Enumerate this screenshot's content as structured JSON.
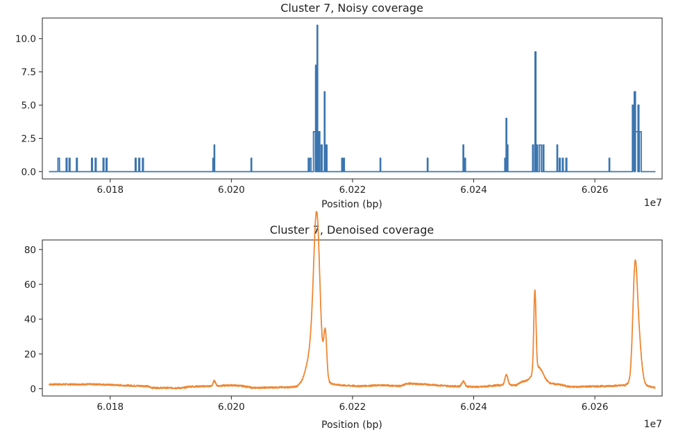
{
  "chart_data": [
    {
      "type": "line",
      "title": "Cluster 7, Noisy coverage",
      "xlabel": "Position (bp)",
      "ylabel": "",
      "x_offset_label": "1e7",
      "xlim": [
        60168800,
        60271100
      ],
      "ylim": [
        -0.55,
        11.55
      ],
      "xticks": [
        60180000,
        60200000,
        60220000,
        60240000,
        60260000
      ],
      "xtick_labels": [
        "6.018",
        "6.020",
        "6.022",
        "6.024",
        "6.026"
      ],
      "yticks": [
        0,
        2.5,
        5,
        7.5,
        10
      ],
      "ytick_labels": [
        "0.0",
        "2.5",
        "5.0",
        "7.5",
        "10.0"
      ],
      "grid": false,
      "color": "#3b75af",
      "series": [
        {
          "baseline": 0,
          "x_range": [
            60169900,
            60270000
          ],
          "spikes": [
            [
              60171500,
              1,
              250
            ],
            [
              60172800,
              1,
              150
            ],
            [
              60173300,
              1,
              150
            ],
            [
              60174500,
              1,
              150
            ],
            [
              60177000,
              1,
              150
            ],
            [
              60177600,
              1,
              150
            ],
            [
              60178900,
              1,
              150
            ],
            [
              60179400,
              1,
              150
            ],
            [
              60184200,
              1,
              150
            ],
            [
              60184800,
              1,
              150
            ],
            [
              60185400,
              1,
              150
            ],
            [
              60197000,
              1,
              100
            ],
            [
              60197200,
              2,
              100
            ],
            [
              60203300,
              1,
              100
            ],
            [
              60212800,
              1,
              200
            ],
            [
              60213000,
              1,
              300
            ],
            [
              60213700,
              3,
              300
            ],
            [
              60214000,
              8,
              200
            ],
            [
              60214200,
              11,
              100
            ],
            [
              60214500,
              3,
              200
            ],
            [
              60214900,
              2,
              150
            ],
            [
              60215400,
              6,
              100
            ],
            [
              60215700,
              2,
              150
            ],
            [
              60218300,
              1,
              150
            ],
            [
              60218600,
              1,
              100
            ],
            [
              60224600,
              1,
              100
            ],
            [
              60232400,
              1,
              100
            ],
            [
              60238300,
              2,
              100
            ],
            [
              60238600,
              1,
              100
            ],
            [
              60245200,
              1,
              150
            ],
            [
              60245400,
              4,
              100
            ],
            [
              60245600,
              2,
              100
            ],
            [
              60249800,
              2,
              150
            ],
            [
              60250200,
              9,
              150
            ],
            [
              60250500,
              2,
              100
            ],
            [
              60251000,
              2,
              300
            ],
            [
              60251500,
              2,
              150
            ],
            [
              60253800,
              2,
              100
            ],
            [
              60254200,
              1,
              150
            ],
            [
              60254700,
              1,
              150
            ],
            [
              60255300,
              1,
              150
            ],
            [
              60262400,
              1,
              100
            ],
            [
              60266300,
              5,
              200
            ],
            [
              60266500,
              3,
              200
            ],
            [
              60266600,
              6,
              200
            ],
            [
              60266900,
              3,
              400
            ],
            [
              60267200,
              5,
              150
            ],
            [
              60267500,
              3,
              300
            ]
          ]
        }
      ]
    },
    {
      "type": "line",
      "title": "Cluster 7, Denoised coverage",
      "xlabel": "Position (bp)",
      "ylabel": "",
      "x_offset_label": "1e7",
      "xlim": [
        60168800,
        60271100
      ],
      "ylim": [
        -4.2,
        85.5
      ],
      "xticks": [
        60180000,
        60200000,
        60220000,
        60240000,
        60260000
      ],
      "xtick_labels": [
        "6.018",
        "6.020",
        "6.022",
        "6.024",
        "6.026"
      ],
      "yticks": [
        0,
        20,
        40,
        60,
        80
      ],
      "ytick_labels": [
        "0",
        "20",
        "40",
        "60",
        "80"
      ],
      "grid": false,
      "color": "#ee8733",
      "series": [
        {
          "x_range": [
            60169900,
            60270000
          ],
          "baseline_segments": [
            [
              60169900,
              2.5
            ],
            [
              60178000,
              2.5
            ],
            [
              60183000,
              1.8
            ],
            [
              60186000,
              1.5
            ],
            [
              60187000,
              0.5
            ],
            [
              60192000,
              0.4
            ],
            [
              60193000,
              1.2
            ],
            [
              60197000,
              1.5
            ],
            [
              60200000,
              2
            ],
            [
              60202000,
              1.5
            ],
            [
              60203500,
              0.5
            ],
            [
              60212000,
              1
            ],
            [
              60213000,
              2
            ],
            [
              60216000,
              3
            ],
            [
              60218000,
              2
            ],
            [
              60221000,
              1.5
            ],
            [
              60225000,
              2
            ],
            [
              60228000,
              1.5
            ],
            [
              60229000,
              3
            ],
            [
              60232000,
              2.5
            ],
            [
              60236000,
              1.5
            ],
            [
              60241000,
              1
            ],
            [
              60244000,
              2
            ],
            [
              60247000,
              2
            ],
            [
              60248000,
              4
            ],
            [
              60250000,
              5
            ],
            [
              60252000,
              3
            ],
            [
              60254000,
              2.5
            ],
            [
              60256000,
              1
            ],
            [
              60258000,
              1.2
            ],
            [
              60262000,
              1.5
            ],
            [
              60265000,
              2
            ],
            [
              60266000,
              4
            ],
            [
              60268000,
              2
            ],
            [
              60270000,
              0.5
            ]
          ],
          "peaks": [
            [
              60214100,
              81,
              500
            ],
            [
              60213500,
              22,
              1000
            ],
            [
              60215500,
              27,
              250
            ],
            [
              60250100,
              46,
              180
            ],
            [
              60250700,
              8,
              800
            ],
            [
              60266600,
              51,
              350
            ],
            [
              60267100,
              30,
              500
            ],
            [
              60245400,
              6,
              250
            ],
            [
              60238300,
              3,
              250
            ],
            [
              60197200,
              3,
              200
            ]
          ]
        }
      ]
    }
  ]
}
